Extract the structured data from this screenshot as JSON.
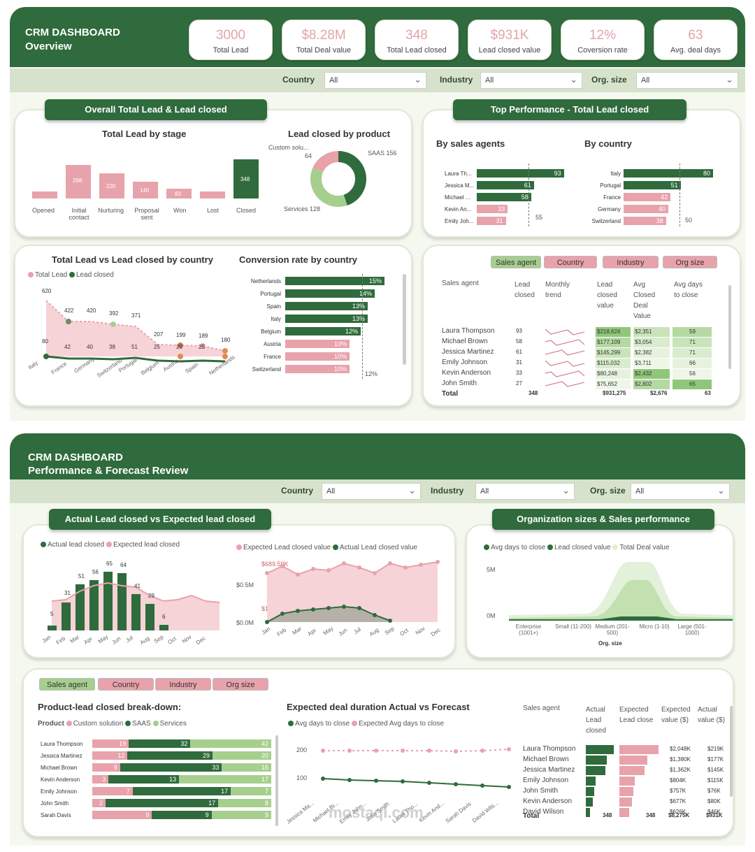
{
  "d1": {
    "title": "CRM DASHBOARD",
    "subtitle": "Overview",
    "kpis": [
      {
        "v": "3000",
        "l": "Total Lead"
      },
      {
        "v": "$8.28M",
        "l": "Total Deal value"
      },
      {
        "v": "348",
        "l": "Total Lead closed"
      },
      {
        "v": "$931K",
        "l": "Lead closed value"
      },
      {
        "v": "12%",
        "l": "Coversion rate"
      },
      {
        "v": "63",
        "l": "Avg. deal days"
      }
    ],
    "filters": {
      "country": "Country",
      "industry": "Industry",
      "org": "Org. size",
      "all": "All"
    },
    "p1title": "Overall Total Lead & Lead closed",
    "stage": {
      "title": "Total Lead by stage",
      "items": [
        {
          "l": "Opened",
          "v": ""
        },
        {
          "l": "Initial contact",
          "v": "298"
        },
        {
          "l": "Nurturing",
          "v": "220"
        },
        {
          "l": "Proposal sent",
          "v": "140"
        },
        {
          "l": "Won",
          "v": "83"
        },
        {
          "l": "Lost",
          "v": ""
        },
        {
          "l": "Closed",
          "v": "348"
        }
      ]
    },
    "product": {
      "title": "Lead closed by product",
      "custom": "Custom solu...",
      "custom_v": "64",
      "saas": "SAAS 156",
      "services": "Services 128",
      "slices": [
        156,
        128,
        64
      ]
    },
    "p2title": "Top Performance - Total Lead closed",
    "agents": {
      "title": "By sales agents",
      "names": [
        "Laura Th...",
        "Jessica M...",
        "Michael ...",
        "Kevin An...",
        "Emily Joh..."
      ],
      "values": [
        93,
        61,
        58,
        33,
        31
      ],
      "avg": "55"
    },
    "countries": {
      "title": "By country",
      "names": [
        "Italy",
        "Portugal",
        "France",
        "Germany",
        "Switzerland"
      ],
      "values": [
        80,
        51,
        42,
        40,
        38
      ],
      "avg": "50"
    },
    "tlc": {
      "title": "Total Lead vs Lead closed by country",
      "leg1": "Total Lead",
      "leg2": "Lead closed",
      "cats": [
        "Italy",
        "France",
        "Germany",
        "Switzerland",
        "Portugal",
        "Belgium",
        "Austria",
        "Spain",
        "Netherlands"
      ],
      "total": [
        "620",
        "422",
        "420",
        "392",
        "371",
        "207",
        "199",
        "189",
        "180"
      ],
      "closed": [
        "80",
        "42",
        "40",
        "38",
        "51",
        "25",
        "20",
        "25",
        ""
      ]
    },
    "conv": {
      "title": "Conversion rate by country",
      "names": [
        "Netherlands",
        "Portugal",
        "Spain",
        "Italy",
        "Belgium",
        "Austria",
        "France",
        "Switzerland"
      ],
      "values": [
        "15%",
        "14%",
        "13%",
        "13%",
        "12%",
        "10%",
        "10%",
        "10%"
      ],
      "avg": "12%"
    },
    "table": {
      "pills": [
        "Sales agent",
        "Country",
        "Industry",
        "Org size"
      ],
      "heads": [
        "Sales agent",
        "Lead closed",
        "Monthly trend",
        "Lead closed value",
        "Avg Closed Deal Value",
        "Avg days to close"
      ],
      "rows": [
        [
          "Laura Thompson",
          "93",
          "$218,624",
          "$2,351",
          "59"
        ],
        [
          "Michael Brown",
          "58",
          "$177,109",
          "$3,054",
          "71"
        ],
        [
          "Jessica Martinez",
          "61",
          "$145,299",
          "$2,382",
          "71"
        ],
        [
          "Emily Johnson",
          "31",
          "$115,032",
          "$3,711",
          "66"
        ],
        [
          "Kevin Anderson",
          "33",
          "$80,248",
          "$2,432",
          "56"
        ],
        [
          "John Smith",
          "27",
          "$75,652",
          "$2,802",
          "65"
        ]
      ],
      "total": [
        "Total",
        "348",
        "$931,275",
        "$2,676",
        "63"
      ]
    }
  },
  "d2": {
    "title": "CRM DASHBOARD",
    "subtitle": "Performance & Forecast Review",
    "p1title": "Actual Lead closed vs Expected lead closed",
    "ae": {
      "leg1": "Actual lead closed",
      "leg2": "Expected lead closed",
      "months": [
        "Jan",
        "Feb",
        "Mar",
        "Apr",
        "May",
        "Jun",
        "Jul",
        "Aug",
        "Sep",
        "Oct",
        "Nov",
        "Dec"
      ],
      "actual": [
        "5",
        "31",
        "51",
        "56",
        "65",
        "64",
        "41",
        "29",
        "6",
        "",
        "",
        ""
      ]
    },
    "ev": {
      "leg1": "Expected Lead closed value",
      "leg2": "Actual Lead closed value",
      "top": "$689.59K",
      "mid": "$0.5M",
      "zero": "$0.0M",
      "ann": "$103K"
    },
    "p2title": "Organization sizes & Sales performance",
    "org": {
      "leg1": "Avg days to close",
      "leg2": "Lead closed value",
      "leg3": "Total Deal value",
      "y1": "5M",
      "y0": "0M",
      "cats": [
        "Enterprise (1001+)",
        "Small (11-200)",
        "Medium (201-500)",
        "Micro (1-10)",
        "Large (501-1000)"
      ],
      "xlabel": "Org. size"
    },
    "pills": [
      "Sales agent",
      "Country",
      "Industry",
      "Org size"
    ],
    "pb": {
      "title": "Product-lead closed break-down:",
      "leglabel": "Product",
      "leg": [
        "Custom solution",
        "SAAS",
        "Services"
      ],
      "names": [
        "Laura Thompson",
        "Jessica Martinez",
        "Michael Brown",
        "Kevin Anderson",
        "Emily Johnson",
        "John Smith",
        "Sarah Davis"
      ],
      "rows": [
        [
          19,
          32,
          42
        ],
        [
          12,
          29,
          20
        ],
        [
          9,
          33,
          16
        ],
        [
          3,
          13,
          17
        ],
        [
          7,
          17,
          7
        ],
        [
          2,
          17,
          8
        ],
        [
          9,
          9,
          9
        ]
      ]
    },
    "dur": {
      "title": "Expected deal duration Actual vs Forecast",
      "leg1": "Avg days to close",
      "leg2": "Expected Avg days to close",
      "y200": "200",
      "y100": "100",
      "names": [
        "Jessica Ma...",
        "Michael Br...",
        "Emily John...",
        "John Smith",
        "Laura Tho...",
        "Kevin And...",
        "Sarah Davis",
        "David Wils..."
      ]
    },
    "t2": {
      "heads": [
        "Sales agent",
        "Actual Lead closed",
        "Expected Lead close",
        "Expected value ($)",
        "Actual value ($)"
      ],
      "rows": [
        [
          "Laura Thompson",
          "$2,048K",
          "$219K"
        ],
        [
          "Michael Brown",
          "$1,380K",
          "$177K"
        ],
        [
          "Jessica Martinez",
          "$1,362K",
          "$145K"
        ],
        [
          "Emily Johnson",
          "$804K",
          "$115K"
        ],
        [
          "John Smith",
          "$757K",
          "$76K"
        ],
        [
          "Kevin Anderson",
          "$677K",
          "$80K"
        ],
        [
          "David Wilson",
          "$626K",
          "$46K"
        ]
      ],
      "total": [
        "Total",
        "348",
        "348",
        "$8,275K",
        "$931K"
      ]
    },
    "watermark": "mostaql.com"
  }
}
